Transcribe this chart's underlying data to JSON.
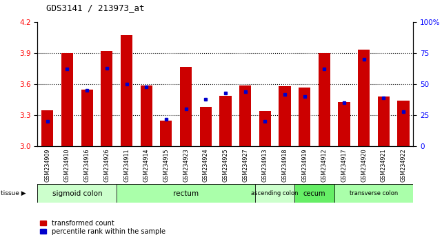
{
  "title": "GDS3141 / 213973_at",
  "samples": [
    "GSM234909",
    "GSM234910",
    "GSM234916",
    "GSM234926",
    "GSM234911",
    "GSM234914",
    "GSM234915",
    "GSM234923",
    "GSM234924",
    "GSM234925",
    "GSM234927",
    "GSM234913",
    "GSM234918",
    "GSM234919",
    "GSM234912",
    "GSM234917",
    "GSM234920",
    "GSM234921",
    "GSM234922"
  ],
  "bar_values": [
    3.35,
    3.9,
    3.55,
    3.92,
    4.07,
    3.59,
    3.25,
    3.77,
    3.38,
    3.49,
    3.59,
    3.34,
    3.58,
    3.57,
    3.9,
    3.43,
    3.93,
    3.48,
    3.44
  ],
  "dot_values": [
    20,
    62,
    45,
    63,
    50,
    48,
    22,
    30,
    38,
    43,
    44,
    20,
    42,
    40,
    62,
    35,
    70,
    39,
    28
  ],
  "ymin": 3.0,
  "ymax": 4.2,
  "yticks": [
    3.0,
    3.3,
    3.6,
    3.9,
    4.2
  ],
  "y2min": 0,
  "y2max": 100,
  "y2ticks": [
    0,
    25,
    50,
    75,
    100
  ],
  "bar_color": "#cc0000",
  "dot_color": "#0000cc",
  "tissue_groups": [
    {
      "label": "sigmoid colon",
      "start": 0,
      "end": 4,
      "color": "#ccffcc"
    },
    {
      "label": "rectum",
      "start": 4,
      "end": 11,
      "color": "#aaffaa"
    },
    {
      "label": "ascending colon",
      "start": 11,
      "end": 13,
      "color": "#ccffcc"
    },
    {
      "label": "cecum",
      "start": 13,
      "end": 15,
      "color": "#66ee66"
    },
    {
      "label": "transverse colon",
      "start": 15,
      "end": 19,
      "color": "#aaffaa"
    }
  ],
  "legend_items": [
    {
      "label": "transformed count",
      "color": "#cc0000"
    },
    {
      "label": "percentile rank within the sample",
      "color": "#0000cc"
    }
  ],
  "tick_area_color": "#c8c8c8",
  "grid_yticks": [
    3.3,
    3.6,
    3.9
  ]
}
